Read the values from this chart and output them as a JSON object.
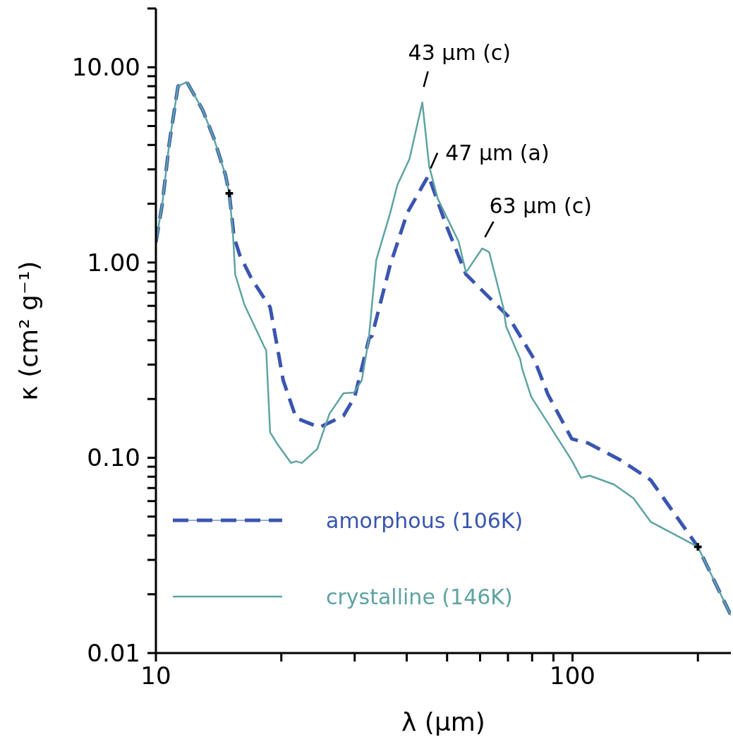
{
  "chart_data": {
    "type": "line",
    "xlabel": "λ (μm)",
    "ylabel": "κ (cm² g⁻¹)",
    "log": "xy",
    "xlim": [
      10,
      240
    ],
    "ylim": [
      0.01,
      20
    ],
    "xticks": [
      10,
      {
        "value": 20,
        "label": null
      },
      {
        "value": 30,
        "label": null
      },
      {
        "value": 40,
        "label": null
      },
      {
        "value": 50,
        "label": null
      },
      {
        "value": 60,
        "label": null
      },
      {
        "value": 70,
        "label": null
      },
      {
        "value": 80,
        "label": null
      },
      {
        "value": 90,
        "label": null
      },
      100,
      {
        "value": 200,
        "label": null
      }
    ],
    "yticks": [
      {
        "value": 0.01,
        "label": "0.01"
      },
      {
        "value": 0.02,
        "label": null
      },
      {
        "value": 0.03,
        "label": null
      },
      {
        "value": 0.04,
        "label": null
      },
      {
        "value": 0.05,
        "label": null
      },
      {
        "value": 0.06,
        "label": null
      },
      {
        "value": 0.07,
        "label": null
      },
      {
        "value": 0.08,
        "label": null
      },
      {
        "value": 0.09,
        "label": null
      },
      {
        "value": 0.1,
        "label": "0.10"
      },
      {
        "value": 0.2,
        "label": null
      },
      {
        "value": 0.3,
        "label": null
      },
      {
        "value": 0.4,
        "label": null
      },
      {
        "value": 0.5,
        "label": null
      },
      {
        "value": 0.6,
        "label": null
      },
      {
        "value": 0.7,
        "label": null
      },
      {
        "value": 0.8,
        "label": null
      },
      {
        "value": 0.9,
        "label": null
      },
      {
        "value": 1,
        "label": "1.00"
      },
      {
        "value": 2,
        "label": null
      },
      {
        "value": 3,
        "label": null
      },
      {
        "value": 4,
        "label": null
      },
      {
        "value": 5,
        "label": null
      },
      {
        "value": 6,
        "label": null
      },
      {
        "value": 7,
        "label": null
      },
      {
        "value": 8,
        "label": null
      },
      {
        "value": 9,
        "label": null
      },
      {
        "value": 10,
        "label": "10.00"
      },
      {
        "value": 20,
        "label": null
      }
    ],
    "legend": "bottom left",
    "series": [
      {
        "name": "amorphous (106K)",
        "color": "#3a55b0",
        "line_style": "dashed",
        "x": [
          10,
          10.36,
          10.77,
          11.3,
          11.87,
          12.94,
          13.77,
          14.7,
          15,
          15.4,
          15.9,
          17,
          18.8,
          19.8,
          20.2,
          21.7,
          24.7,
          28.2,
          30,
          32.5,
          33,
          36.5,
          40.1,
          45.1,
          49.7,
          55.5,
          70.1,
          80.9,
          87.4,
          99.6,
          108.9,
          130.7,
          154,
          200,
          240
        ],
        "values": [
          1.27,
          2.0,
          4.1,
          8.0,
          8.4,
          6.06,
          4.34,
          2.79,
          2.26,
          1.35,
          1.09,
          0.82,
          0.59,
          0.32,
          0.25,
          0.16,
          0.143,
          0.164,
          0.205,
          0.41,
          0.42,
          0.97,
          1.79,
          2.79,
          1.56,
          0.87,
          0.53,
          0.32,
          0.21,
          0.125,
          0.119,
          0.097,
          0.077,
          0.035,
          0.0156
        ]
      },
      {
        "name": "crystalline (146K)",
        "color": "#5fa3a3",
        "line_style": "solid",
        "x": [
          10,
          10.36,
          10.77,
          11.3,
          11.87,
          12.94,
          13.77,
          14.7,
          15,
          15.3,
          15.5,
          16.3,
          17.7,
          18.2,
          18.4,
          18.8,
          19.6,
          21.1,
          21.7,
          22.4,
          24.4,
          26.1,
          28.2,
          29.9,
          31.2,
          32.4,
          33.8,
          36.5,
          38,
          40.6,
          43.6,
          45.3,
          47.5,
          53.3,
          55.5,
          60.7,
          63.1,
          68.2,
          69.3,
          74.9,
          75.7,
          79.6,
          99.6,
          104.8,
          110,
          125.8,
          140.1,
          154,
          200,
          240
        ],
        "values": [
          1.27,
          2.0,
          4.1,
          8.0,
          8.4,
          6.06,
          4.34,
          2.79,
          2.26,
          1.43,
          0.87,
          0.61,
          0.42,
          0.37,
          0.355,
          0.135,
          0.117,
          0.094,
          0.096,
          0.094,
          0.111,
          0.168,
          0.214,
          0.216,
          0.249,
          0.4,
          1.03,
          1.79,
          2.5,
          3.38,
          6.6,
          3.1,
          2.12,
          1.28,
          0.89,
          1.18,
          1.13,
          0.59,
          0.47,
          0.32,
          0.286,
          0.205,
          0.097,
          0.079,
          0.081,
          0.073,
          0.062,
          0.047,
          0.035,
          0.0156
        ]
      },
      {
        "type": "scatter",
        "color": "#000000",
        "marker": "cross",
        "x": [
          15,
          200
        ],
        "values": [
          2.26,
          0.035
        ]
      }
    ],
    "annotations": [
      {
        "text": "43 μm (c)",
        "x": 43.6,
        "y": 6.6
      },
      {
        "text": "47 μm (a)",
        "x": 45.1,
        "y": 2.79
      },
      {
        "text": "63 μm (c)",
        "x": 60.7,
        "y": 1.18
      }
    ]
  }
}
